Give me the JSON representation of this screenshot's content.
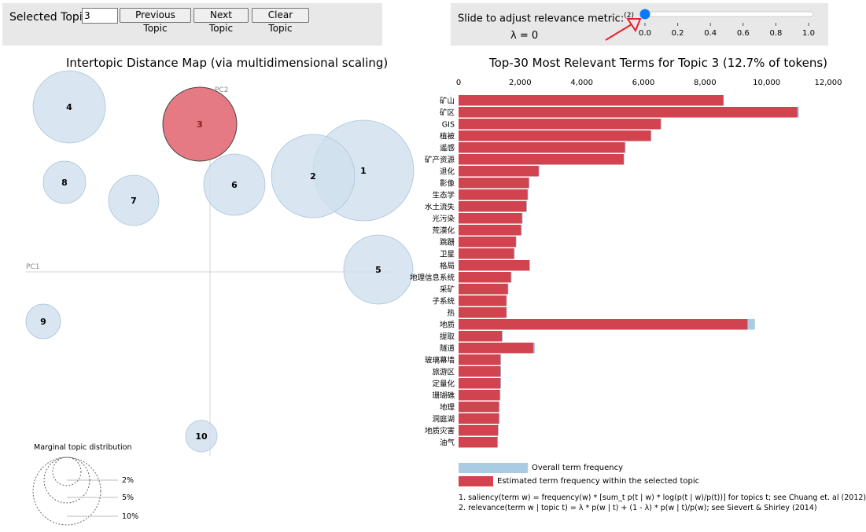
{
  "controls": {
    "selected_topic_label": "Selected Topic:",
    "selected_topic_value": "3",
    "prev_label": "Previous Topic",
    "next_label": "Next Topic",
    "clear_label": "Clear Topic",
    "slider_label": "Slide to adjust relevance metric:",
    "slider_footnote_ref": "(2)",
    "lambda_text": "λ = 0",
    "lambda_value": 0,
    "slider_ticks": [
      "0.0",
      "0.2",
      "0.4",
      "0.6",
      "0.8",
      "1.0"
    ]
  },
  "colors": {
    "overall": "#a9cce3",
    "selected": "#d1434f",
    "topic_circle": "#cfe0ee",
    "selected_circle": "#e5737b"
  },
  "chart_data": [
    {
      "type": "scatter",
      "title": "Intertopic Distance Map (via multidimensional scaling)",
      "xlabel": "PC1",
      "ylabel": "PC2",
      "topics": [
        {
          "id": "1",
          "share": 12.0,
          "selected": false
        },
        {
          "id": "2",
          "share": 9.5,
          "selected": false
        },
        {
          "id": "3",
          "share": 12.7,
          "selected": true
        },
        {
          "id": "4",
          "share": 8.5,
          "selected": false
        },
        {
          "id": "5",
          "share": 8.0,
          "selected": false
        },
        {
          "id": "6",
          "share": 6.0,
          "selected": false
        },
        {
          "id": "7",
          "share": 4.0,
          "selected": false
        },
        {
          "id": "8",
          "share": 2.7,
          "selected": false
        },
        {
          "id": "9",
          "share": 1.8,
          "selected": false
        },
        {
          "id": "10",
          "share": 1.5,
          "selected": false
        }
      ],
      "marginal": {
        "title": "Marginal topic distribution",
        "labels": [
          "2%",
          "5%",
          "10%"
        ]
      }
    },
    {
      "type": "bar",
      "title": "Top-30 Most Relevant Terms for Topic 3 (12.7% of tokens)",
      "xlim": [
        0,
        12000
      ],
      "ticks": [
        "0",
        "2,000",
        "4,000",
        "6,000",
        "8,000",
        "10,000",
        "12,000"
      ],
      "tick_values": [
        0,
        2000,
        4000,
        6000,
        8000,
        10000,
        12000
      ],
      "terms": [
        "矿山",
        "矿区",
        "GIS",
        "植被",
        "遥感",
        "矿产资源",
        "退化",
        "影像",
        "生态学",
        "水土流失",
        "光污染",
        "荒漠化",
        "跳跚",
        "卫星",
        "格局",
        "地理信息系统",
        "采矿",
        "子系统",
        "热",
        "地质",
        "提取",
        "隧道",
        "玻璃幕墙",
        "旅游区",
        "定量化",
        "珊瑚礁",
        "地理",
        "洞庭湖",
        "地质灾害",
        "油气"
      ],
      "series": [
        {
          "name": "Overall term frequency",
          "values": [
            8600,
            11050,
            6580,
            6260,
            5420,
            5380,
            2620,
            2300,
            2260,
            2220,
            2080,
            2050,
            1880,
            1820,
            2320,
            1720,
            1620,
            1570,
            1570,
            9620,
            1430,
            2480,
            1380,
            1380,
            1380,
            1360,
            1330,
            1330,
            1300,
            1280
          ]
        },
        {
          "name": "Estimated term frequency within the selected topic",
          "values": [
            8600,
            11000,
            6560,
            6240,
            5400,
            5360,
            2600,
            2280,
            2240,
            2200,
            2060,
            2030,
            1860,
            1800,
            2300,
            1700,
            1600,
            1550,
            1550,
            9380,
            1410,
            2430,
            1360,
            1360,
            1360,
            1340,
            1310,
            1310,
            1280,
            1260
          ]
        }
      ],
      "legend": [
        "Overall term frequency",
        "Estimated term frequency within the selected topic"
      ]
    }
  ],
  "footnotes": [
    "1. saliency(term w) = frequency(w) * [sum_t p(t | w) * log(p(t | w)/p(t))] for topics t; see Chuang et. al (2012)",
    "2. relevance(term w | topic t) = λ * p(w | t) + (1 - λ) * p(w | t)/p(w); see Sievert & Shirley (2014)"
  ]
}
